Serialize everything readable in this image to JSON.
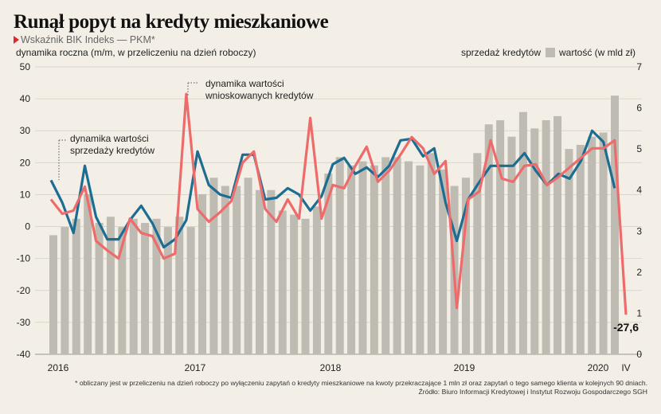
{
  "title": "Runął popyt na kredyty mieszkaniowe",
  "subtitle": "Wskaźnik BIK Indeks — PKM*",
  "left_axis_label": "dynamika roczna (m/m, w przeliczeniu na dzień roboczy)",
  "legend": {
    "bars_label": "sprzedaż kredytów",
    "bars_value_label": "wartość (w mld zł)"
  },
  "footnote": {
    "line1": "* obliczany jest w przeliczeniu na dzień roboczy po wyłączeniu zapytań o kredyty mieszkaniowe na kwoty przekraczające 1 mln zł oraz zapytań o tego samego klienta w kolejnych 90 dniach.",
    "line2": "Źródło: Biuro Informacji Kredytowej i Instytut Rozwoju Gospodarczego SGH"
  },
  "colors": {
    "background": "#f3efe6",
    "bars": "#bdbbb2",
    "sales_line": "#1d6d93",
    "applications_line": "#ee6b6b",
    "grid": "#d9d6cd"
  },
  "chart_data": {
    "type": "bar+line",
    "x_tick_labels": [
      "2016",
      "2017",
      "2018",
      "2019",
      "2020",
      "IV"
    ],
    "y_left": {
      "ticks": [
        "50",
        "40",
        "30",
        "20",
        "10",
        "0",
        "-10",
        "-20",
        "-30",
        "-40"
      ],
      "ylim": [
        -40,
        50
      ]
    },
    "y_right": {
      "ticks": [
        "7",
        "6",
        "5",
        "4",
        "3",
        "2",
        "1",
        "0"
      ],
      "ylim": [
        0,
        7
      ]
    },
    "annotations": {
      "sales": "dynamika wartości sprzedaży kredytów",
      "applications": "dynamika wartości wnioskowanych kredytów",
      "last_value": "-27,6"
    },
    "series": [
      {
        "kind": "bar",
        "axis": "right",
        "values": [
          2.9,
          3.1,
          3.3,
          3.9,
          3.2,
          3.35,
          3.1,
          3.3,
          3.2,
          3.3,
          3.1,
          3.35,
          3.1,
          3.9,
          4.3,
          4.1,
          4.1,
          4.3,
          4.0,
          4.0,
          3.5,
          3.4,
          3.3,
          3.6,
          4.4,
          4.8,
          4.6,
          4.7,
          4.6,
          4.8,
          4.8,
          4.7,
          4.6,
          4.9,
          4.5,
          4.1,
          4.3,
          4.9,
          5.6,
          5.7,
          5.3,
          5.9,
          5.5,
          5.7,
          5.8,
          5.0,
          5.1,
          5.3,
          5.4,
          6.3
        ]
      },
      {
        "kind": "line",
        "axis": "left",
        "name": "dynamika wartości sprzedaży kredytów",
        "values": [
          14.5,
          7.5,
          -2,
          19,
          3,
          -4,
          -4,
          2,
          6.5,
          1,
          -6.5,
          -4,
          2,
          23.5,
          13,
          10,
          9,
          22.5,
          22.5,
          8.5,
          9,
          12,
          10,
          5,
          9.5,
          19.5,
          21.5,
          16.5,
          18.5,
          15.5,
          19,
          27,
          27.5,
          22,
          24.5,
          7.5,
          -4.5,
          8.5,
          14,
          19,
          19,
          19,
          23,
          17.5,
          13,
          16.5,
          15,
          20.5,
          30,
          26.5,
          12
        ]
      },
      {
        "kind": "line",
        "axis": "left",
        "name": "dynamika wartości wnioskowanych kredytów",
        "values": [
          8.5,
          4,
          5,
          12.5,
          -4.5,
          -7.5,
          -10,
          2.5,
          -2,
          -3,
          -10,
          -8.5,
          41.5,
          5.5,
          1.5,
          4.5,
          8,
          20,
          23.5,
          5.5,
          1.5,
          8.5,
          2.5,
          34,
          2.5,
          13,
          12,
          19,
          25,
          14,
          17.5,
          22.5,
          28,
          24.5,
          16.5,
          20.5,
          -25.5,
          8.5,
          11,
          27,
          15,
          14,
          19,
          19.5,
          13,
          15.5,
          18.5,
          21.5,
          24.5,
          24.5,
          27,
          -27.6
        ]
      }
    ]
  }
}
